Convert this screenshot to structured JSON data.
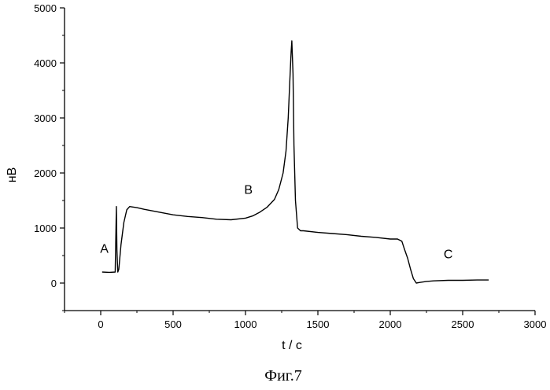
{
  "chart_data": {
    "type": "line",
    "title": "",
    "caption": "Фиг.7",
    "xlabel": "t / c",
    "ylabel": "нВ",
    "xlim": [
      -250,
      3000
    ],
    "ylim": [
      -500,
      5000
    ],
    "xticks": [
      0,
      500,
      1000,
      1500,
      2000,
      2500,
      3000
    ],
    "yticks": [
      0,
      1000,
      2000,
      3000,
      4000,
      5000
    ],
    "grid": false,
    "annotations": [
      {
        "text": "A",
        "x": 25,
        "y": 550
      },
      {
        "text": "B",
        "x": 1020,
        "y": 1620
      },
      {
        "text": "C",
        "x": 2400,
        "y": 450
      }
    ],
    "series": [
      {
        "name": "",
        "color": "#000000",
        "x": [
          10,
          60,
          100,
          108,
          112,
          118,
          125,
          140,
          160,
          180,
          200,
          250,
          300,
          400,
          500,
          600,
          700,
          800,
          900,
          1000,
          1050,
          1100,
          1150,
          1200,
          1230,
          1260,
          1280,
          1295,
          1305,
          1315,
          1320,
          1328,
          1335,
          1345,
          1360,
          1380,
          1400,
          1500,
          1600,
          1700,
          1800,
          1900,
          2000,
          2050,
          2080,
          2100,
          2120,
          2140,
          2160,
          2180,
          2200,
          2250,
          2300,
          2400,
          2500,
          2600,
          2680
        ],
        "y": [
          200,
          195,
          200,
          1390,
          600,
          200,
          250,
          700,
          1100,
          1330,
          1390,
          1370,
          1340,
          1290,
          1240,
          1210,
          1190,
          1160,
          1150,
          1180,
          1220,
          1290,
          1380,
          1520,
          1700,
          2000,
          2400,
          3000,
          3600,
          4200,
          4400,
          3800,
          2500,
          1500,
          1000,
          950,
          950,
          920,
          900,
          880,
          850,
          830,
          800,
          800,
          760,
          600,
          450,
          250,
          80,
          0,
          10,
          30,
          40,
          50,
          50,
          55,
          55
        ]
      }
    ]
  }
}
